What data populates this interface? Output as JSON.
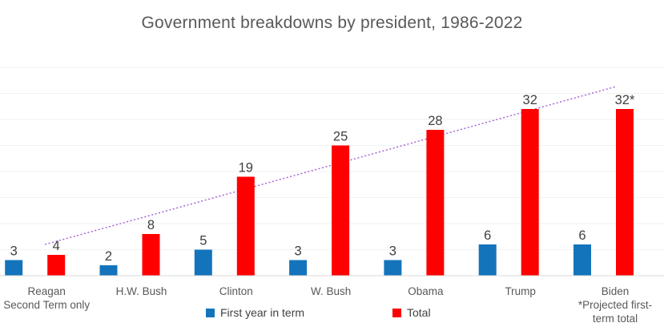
{
  "chart_data": {
    "type": "bar",
    "title": "Government breakdowns by president, 1986-2022",
    "categories": [
      "Reagan",
      "H.W. Bush",
      "Clinton",
      "W. Bush",
      "Obama",
      "Trump",
      "Biden"
    ],
    "category_notes": [
      "Second Term only",
      "",
      "",
      "",
      "",
      "",
      "*Projected first-\nterm total"
    ],
    "series": [
      {
        "name": "First year in term",
        "color": "#1374BC",
        "values": [
          3,
          2,
          5,
          3,
          3,
          6,
          6
        ],
        "data_labels": [
          "3",
          "2",
          "5",
          "3",
          "3",
          "6",
          "6"
        ]
      },
      {
        "name": "Total",
        "color": "#FF0000",
        "values": [
          4,
          8,
          19,
          25,
          28,
          32,
          32
        ],
        "data_labels": [
          "4",
          "8",
          "19",
          "25",
          "28",
          "32",
          "32*"
        ]
      }
    ],
    "trendline": {
      "series": "Total",
      "style": "dotted",
      "color": "#A35BD6",
      "start_value": 6,
      "end_value": 36.3
    },
    "ylim": [
      0,
      40
    ],
    "grid_interval": 5,
    "grid": "horizontal, no y-axis tick labels",
    "legend_position": "bottom",
    "colors": {
      "title_text": "#595959",
      "category_text": "#595959",
      "data_label_text": "#404040",
      "gridline": "#F2F2F2",
      "axis_line": "#D9D9D9"
    }
  }
}
